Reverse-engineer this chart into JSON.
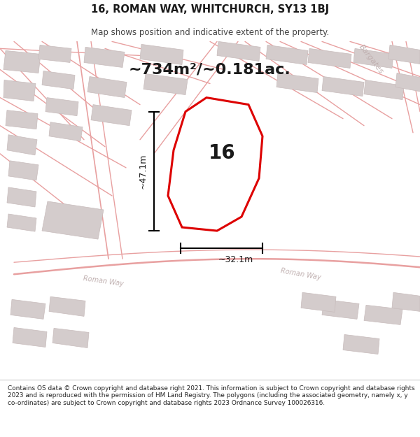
{
  "title": "16, ROMAN WAY, WHITCHURCH, SY13 1BJ",
  "subtitle": "Map shows position and indicative extent of the property.",
  "area_text": "~734m²/~0.181ac.",
  "property_number": "16",
  "dim_width": "~32.1m",
  "dim_height": "~47.1m",
  "footer": "Contains OS data © Crown copyright and database right 2021. This information is subject to Crown copyright and database rights 2023 and is reproduced with the permission of HM Land Registry. The polygons (including the associated geometry, namely x, y co-ordinates) are subject to Crown copyright and database rights 2023 Ordnance Survey 100026316.",
  "road_color": "#e8a0a0",
  "building_color": "#d4cccc",
  "building_edge": "#c8bcbc",
  "highlight_color": "#dd0000",
  "road_label_color": "#c0b0b0",
  "corner_label": "Bargates",
  "road_label": "Roman Way"
}
